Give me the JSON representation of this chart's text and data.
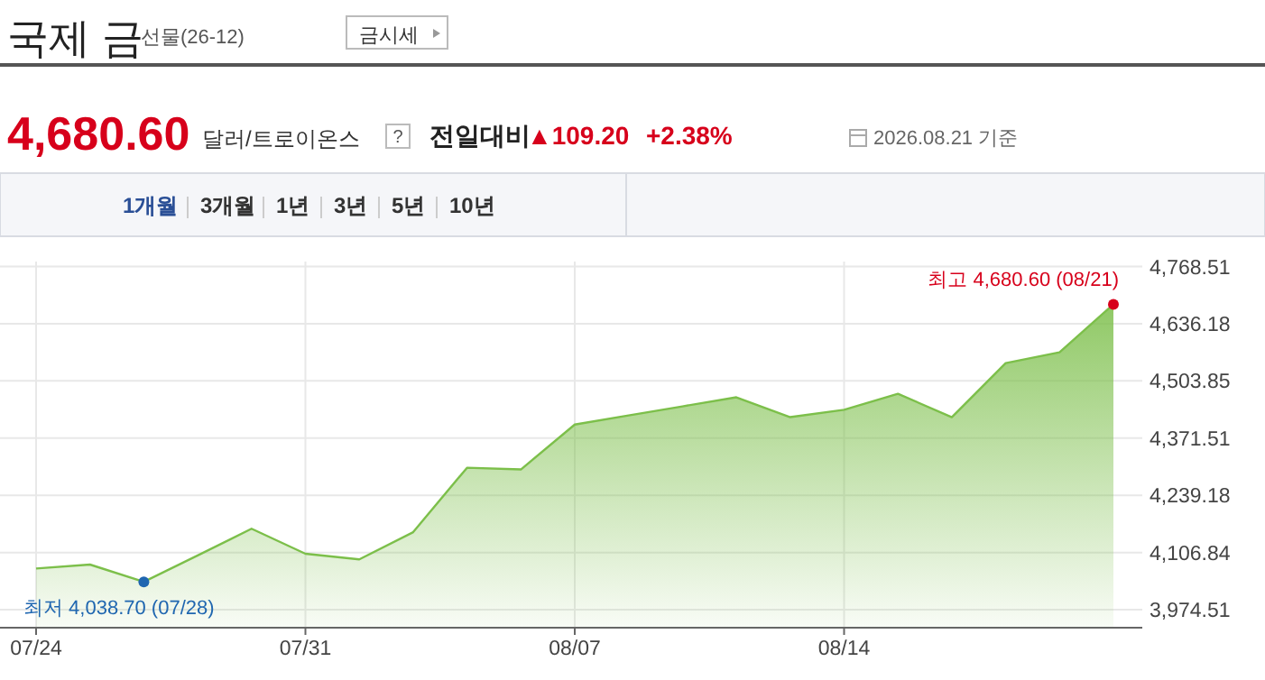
{
  "chart_data": {
    "type": "area",
    "title": "국제 금",
    "subtitle": "선물(26-12)",
    "categories": [
      "07/24",
      null,
      null,
      null,
      null,
      "07/31",
      null,
      null,
      null,
      null,
      "08/07",
      null,
      null,
      null,
      null,
      "08/14",
      null,
      null,
      null,
      null,
      null
    ],
    "series": [
      {
        "color": "#7cbf4a",
        "values": [
          4070,
          4079,
          4039,
          4100,
          4162,
          4104,
          4091,
          4154,
          4303,
          4299,
          4403,
          4424,
          4445,
          4466,
          4420,
          4437,
          4474,
          4420,
          4545,
          4570,
          4681
        ]
      }
    ],
    "ylim": [
      3933,
      4780
    ],
    "yticks": [
      {
        "value": 3974.51,
        "label": "3,974.51"
      },
      {
        "value": 4106.84,
        "label": "4,106.84"
      },
      {
        "value": 4239.18,
        "label": "4,239.18"
      },
      {
        "value": 4371.51,
        "label": "4,371.51"
      },
      {
        "value": 4503.85,
        "label": "4,503.85"
      },
      {
        "value": 4636.18,
        "label": "4,636.18"
      },
      {
        "value": 4768.51,
        "label": "4,768.51"
      }
    ],
    "grid": true,
    "line_style": "solid",
    "annotations": [
      "금시세",
      "4,680.60",
      "달러/트로이온스",
      "?",
      "전일대비",
      "▲109.20",
      "+2.38%",
      "2026.08.21 기준",
      "1개월",
      "3개월",
      "1년",
      "3년",
      "5년",
      "10년",
      "최고 4,680.60 (08/21)",
      "최저 4,038.70 (07/28)"
    ]
  }
}
